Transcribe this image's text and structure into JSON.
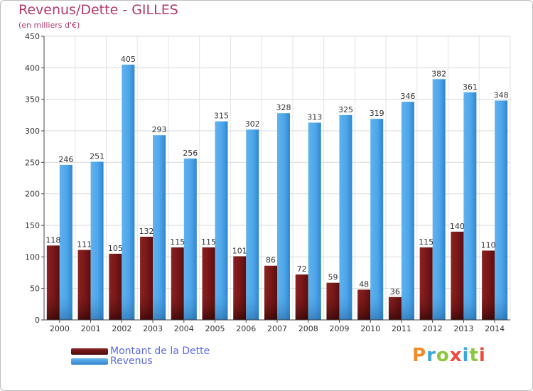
{
  "chart_data": {
    "type": "bar",
    "title": "Revenus/Dette - GILLES",
    "subtitle": "(en milliers d'€)",
    "categories": [
      "2000",
      "2001",
      "2002",
      "2003",
      "2004",
      "2005",
      "2006",
      "2007",
      "2008",
      "2009",
      "2010",
      "2011",
      "2012",
      "2013",
      "2014"
    ],
    "series": [
      {
        "name": "Montant de la Dette",
        "color": "#7a1a1a",
        "values": [
          118,
          111,
          105,
          132,
          115,
          115,
          101,
          86,
          72,
          59,
          48,
          36,
          115,
          140,
          110
        ]
      },
      {
        "name": "Revenus",
        "color": "#4aa3e8",
        "values": [
          246,
          251,
          405,
          293,
          256,
          315,
          302,
          328,
          313,
          325,
          319,
          346,
          382,
          361,
          348
        ]
      }
    ],
    "yticks": [
      0,
      50,
      100,
      150,
      200,
      250,
      300,
      350,
      400,
      450
    ],
    "ylim": [
      0,
      450
    ],
    "grid": true,
    "legend_position": "bottom-left"
  },
  "brand": {
    "text": "Proxiti",
    "colors": [
      "#f08c28",
      "#3aa9d8",
      "#8cc63f",
      "#e94b3c"
    ]
  }
}
